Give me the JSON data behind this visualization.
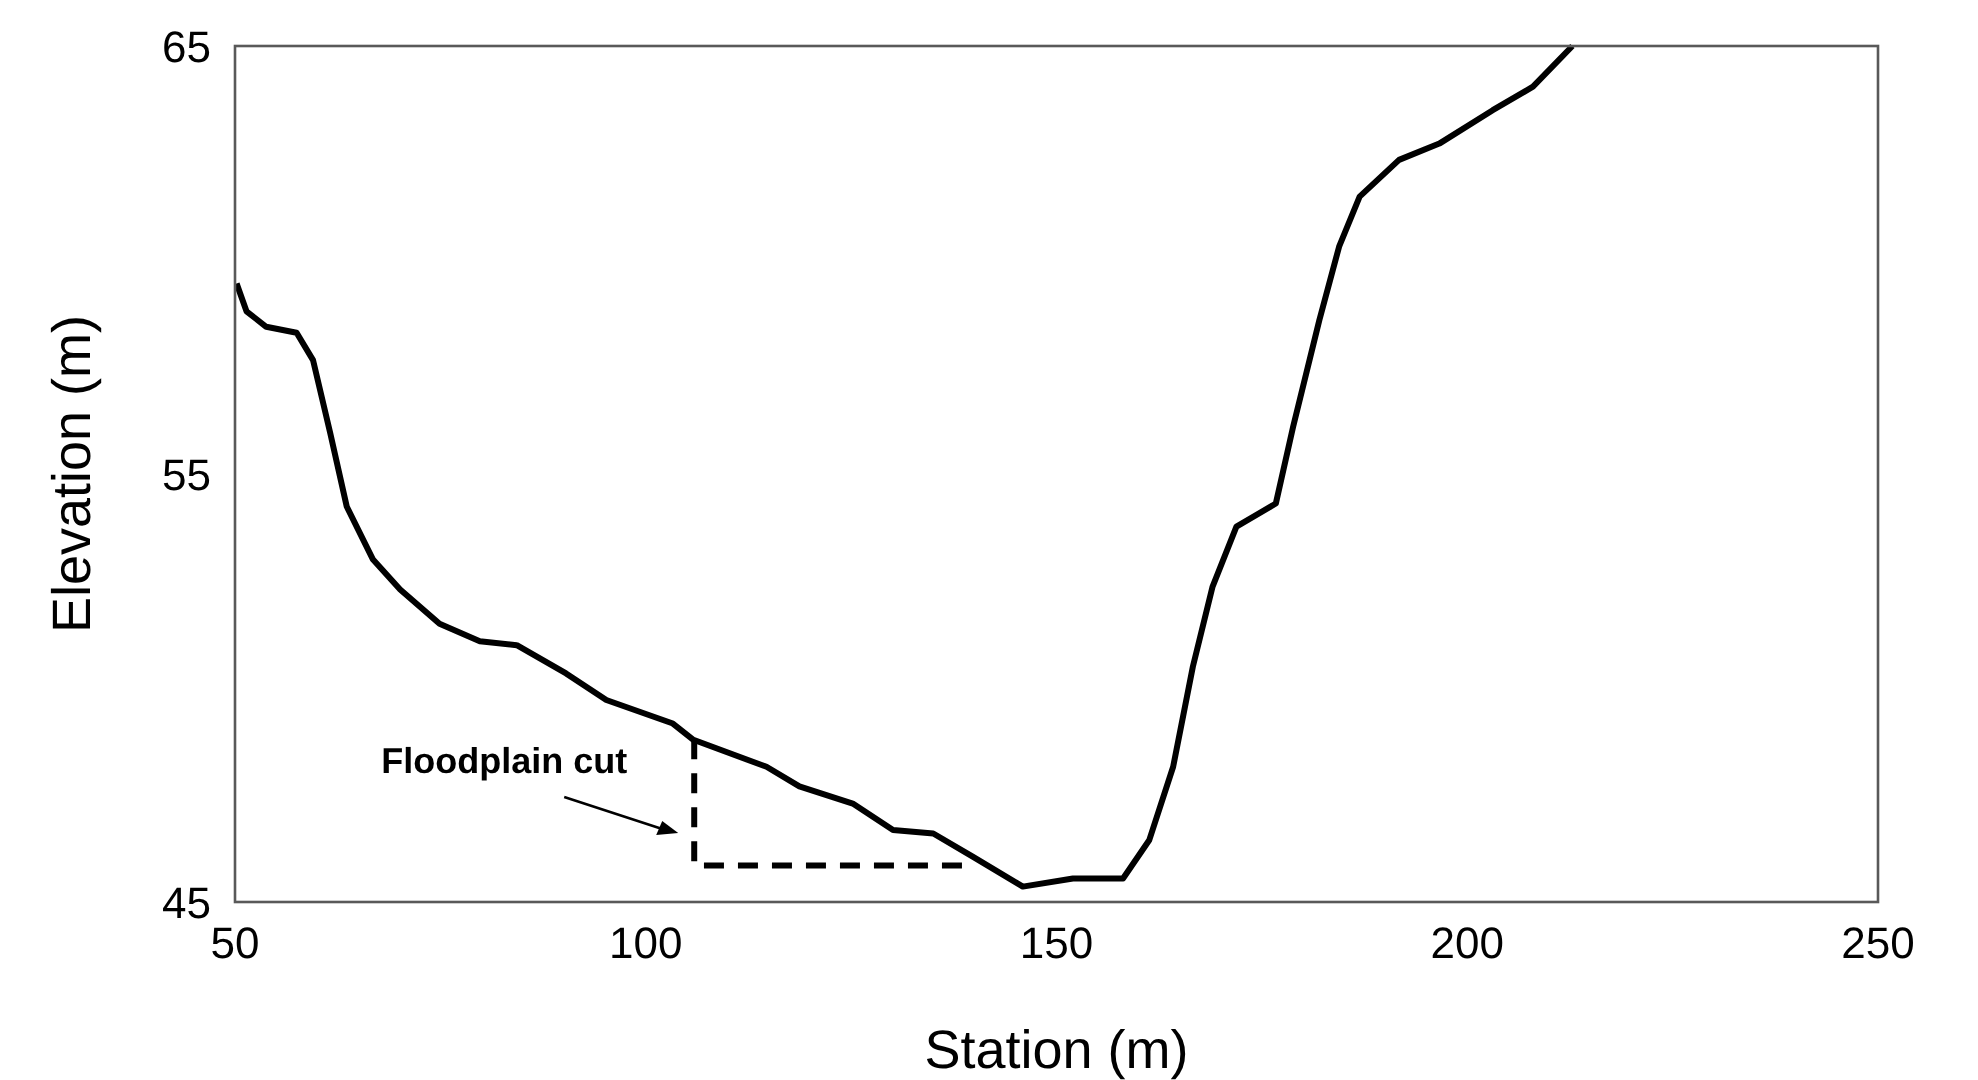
{
  "chart_data": {
    "type": "line",
    "xlabel": "Station (m)",
    "ylabel": "Elevation (m)",
    "xlim": [
      50,
      250
    ],
    "ylim": [
      45,
      65
    ],
    "xticks": [
      50,
      100,
      150,
      200,
      250
    ],
    "yticks": [
      45,
      55,
      65
    ],
    "grid": false,
    "series": [
      {
        "color": "#000000",
        "line_style": "solid",
        "x": [
          50.2,
          51.4,
          53.8,
          57.5,
          59.5,
          61.6,
          63.6,
          66.8,
          70.1,
          74.9,
          79.8,
          84.3,
          90.3,
          95.2,
          103.3,
          105.8,
          114.7,
          118.7,
          125.2,
          130.1,
          135.0,
          139.8,
          145.9,
          152.0,
          158.1,
          161.3,
          164.2,
          166.6,
          169.0,
          171.9,
          176.7,
          178.8,
          182.0,
          184.4,
          186.9,
          191.7,
          196.6,
          203.1,
          208.0,
          212.8
        ],
        "values": [
          59.45,
          58.8,
          58.44,
          58.3,
          57.66,
          55.95,
          54.24,
          53.0,
          52.3,
          51.5,
          51.09,
          51.0,
          50.34,
          49.72,
          49.17,
          48.79,
          48.16,
          47.7,
          47.3,
          46.68,
          46.6,
          46.06,
          45.36,
          45.55,
          45.55,
          46.45,
          48.16,
          50.5,
          52.37,
          53.77,
          54.31,
          56.1,
          58.6,
          60.31,
          61.48,
          62.34,
          62.72,
          63.5,
          64.05,
          65.0
        ]
      },
      {
        "color": "#000000",
        "line_style": "dashed",
        "x": [
          105.9,
          105.9,
          138.6
        ],
        "values": [
          48.8,
          45.85,
          45.85
        ]
      }
    ],
    "annotations": [
      {
        "text": "Floodplain cut",
        "x": 105.9,
        "y": 46.8
      }
    ]
  }
}
